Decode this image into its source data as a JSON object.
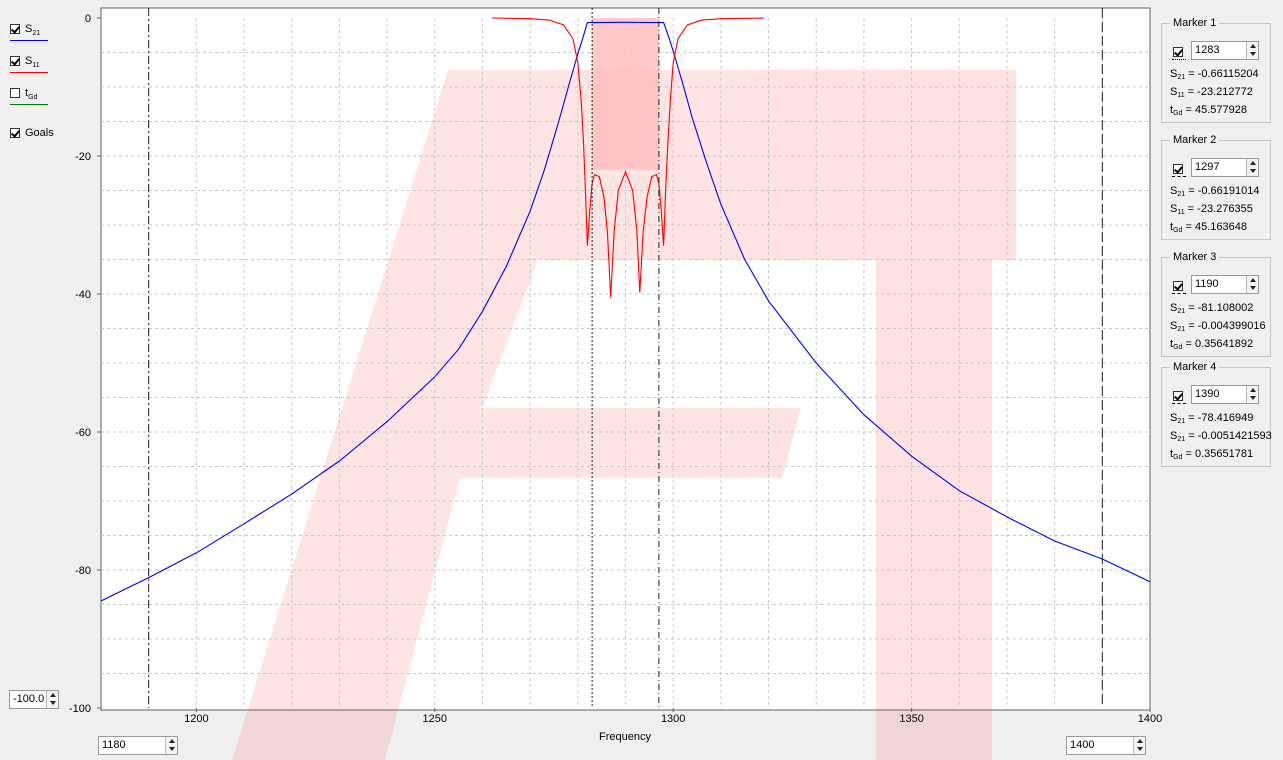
{
  "legend": {
    "items": [
      {
        "id": "s21",
        "sym": "S",
        "sub": "21",
        "checked": true,
        "color": "#0000ff"
      },
      {
        "id": "s11",
        "sym": "S",
        "sub": "11",
        "checked": true,
        "color": "#ff0000"
      },
      {
        "id": "tgd",
        "sym": "t",
        "sub": "Gd",
        "checked": false,
        "color": "#008000"
      },
      {
        "id": "goals",
        "label": "Goals",
        "checked": true
      }
    ]
  },
  "y_axis": {
    "min_input": "-100.0"
  },
  "x_axis": {
    "label": "Frequency",
    "min_input": "1180",
    "max_input": "1400"
  },
  "markers": [
    {
      "title": "Marker 1",
      "checked": true,
      "freq": "1283",
      "line_style": "dotted",
      "s21": "-0.66115204",
      "s11": "-23.212772",
      "tgd": "45.577928"
    },
    {
      "title": "Marker 2",
      "checked": true,
      "freq": "1297",
      "line_style": "dashdot",
      "s21": "-0.66191014",
      "s11": "-23.276355",
      "tgd": "45.163648"
    },
    {
      "title": "Marker 3",
      "checked": true,
      "freq": "1190",
      "line_style": "dashdotshort",
      "s21": "-81.108002",
      "s11": "-0.004399016",
      "tgd": "0.35641892"
    },
    {
      "title": "Marker 4",
      "checked": true,
      "freq": "1390",
      "line_style": "dashed",
      "s21": "-78.416949",
      "s11": "-0.0051421593",
      "tgd": "0.35651781"
    }
  ],
  "chart_data": {
    "type": "line",
    "xlabel": "Frequency",
    "ylabel": "",
    "xlim": [
      1180,
      1400
    ],
    "ylim": [
      -100,
      0
    ],
    "x_ticks": [
      1200,
      1250,
      1300,
      1350,
      1400
    ],
    "y_ticks": [
      0,
      -20,
      -40,
      -60,
      -80,
      -100
    ],
    "grid": true,
    "series": [
      {
        "name": "S21",
        "color": "#0000ff",
        "points": [
          [
            1180,
            -84.5
          ],
          [
            1190,
            -81.1
          ],
          [
            1200,
            -77.5
          ],
          [
            1210,
            -73.3
          ],
          [
            1220,
            -69
          ],
          [
            1230,
            -64.2
          ],
          [
            1240,
            -58.5
          ],
          [
            1250,
            -52
          ],
          [
            1255,
            -48
          ],
          [
            1260,
            -42.5
          ],
          [
            1265,
            -36
          ],
          [
            1270,
            -28
          ],
          [
            1273,
            -22
          ],
          [
            1276,
            -15
          ],
          [
            1278,
            -10
          ],
          [
            1280,
            -5.2
          ],
          [
            1281,
            -3
          ],
          [
            1282,
            -0.66
          ],
          [
            1283,
            -0.66
          ],
          [
            1290,
            -0.62
          ],
          [
            1297,
            -0.66
          ],
          [
            1298,
            -0.66
          ],
          [
            1299,
            -2.6
          ],
          [
            1300,
            -4.8
          ],
          [
            1302,
            -9.5
          ],
          [
            1304,
            -14.5
          ],
          [
            1307,
            -21
          ],
          [
            1310,
            -27
          ],
          [
            1315,
            -35
          ],
          [
            1320,
            -41
          ],
          [
            1330,
            -50
          ],
          [
            1340,
            -57.5
          ],
          [
            1350,
            -63.5
          ],
          [
            1360,
            -68.5
          ],
          [
            1370,
            -72.3
          ],
          [
            1380,
            -75.8
          ],
          [
            1390,
            -78.4
          ],
          [
            1400,
            -81.7
          ]
        ]
      },
      {
        "name": "S11",
        "color": "#ff0000",
        "points": [
          [
            1262,
            0
          ],
          [
            1270,
            -0.1
          ],
          [
            1274,
            -0.3
          ],
          [
            1277,
            -1
          ],
          [
            1279,
            -3
          ],
          [
            1280,
            -6.5
          ],
          [
            1280.7,
            -12
          ],
          [
            1281.2,
            -18
          ],
          [
            1281.6,
            -25
          ],
          [
            1282,
            -33
          ],
          [
            1282.5,
            -28
          ],
          [
            1283,
            -24
          ],
          [
            1283.5,
            -22.7
          ],
          [
            1284.5,
            -23
          ],
          [
            1285.5,
            -26
          ],
          [
            1286.2,
            -31
          ],
          [
            1286.9,
            -40.5
          ],
          [
            1287.6,
            -31
          ],
          [
            1288.5,
            -25
          ],
          [
            1290,
            -22.3
          ],
          [
            1291.5,
            -25
          ],
          [
            1292.4,
            -31
          ],
          [
            1293,
            -39.8
          ],
          [
            1293.7,
            -31
          ],
          [
            1294.5,
            -26
          ],
          [
            1295.5,
            -23
          ],
          [
            1296.5,
            -22.7
          ],
          [
            1297,
            -24
          ],
          [
            1297.5,
            -28
          ],
          [
            1298,
            -33
          ],
          [
            1298.4,
            -25
          ],
          [
            1298.9,
            -18
          ],
          [
            1299.4,
            -12
          ],
          [
            1300,
            -6.5
          ],
          [
            1301,
            -3
          ],
          [
            1303,
            -1
          ],
          [
            1306,
            -0.3
          ],
          [
            1310,
            -0.1
          ],
          [
            1319,
            0
          ]
        ]
      }
    ],
    "goals": [
      {
        "type": "band",
        "x1": 1283,
        "x2": 1297,
        "y1": 0,
        "y2": -22,
        "color": "#ffbfbf"
      }
    ]
  }
}
